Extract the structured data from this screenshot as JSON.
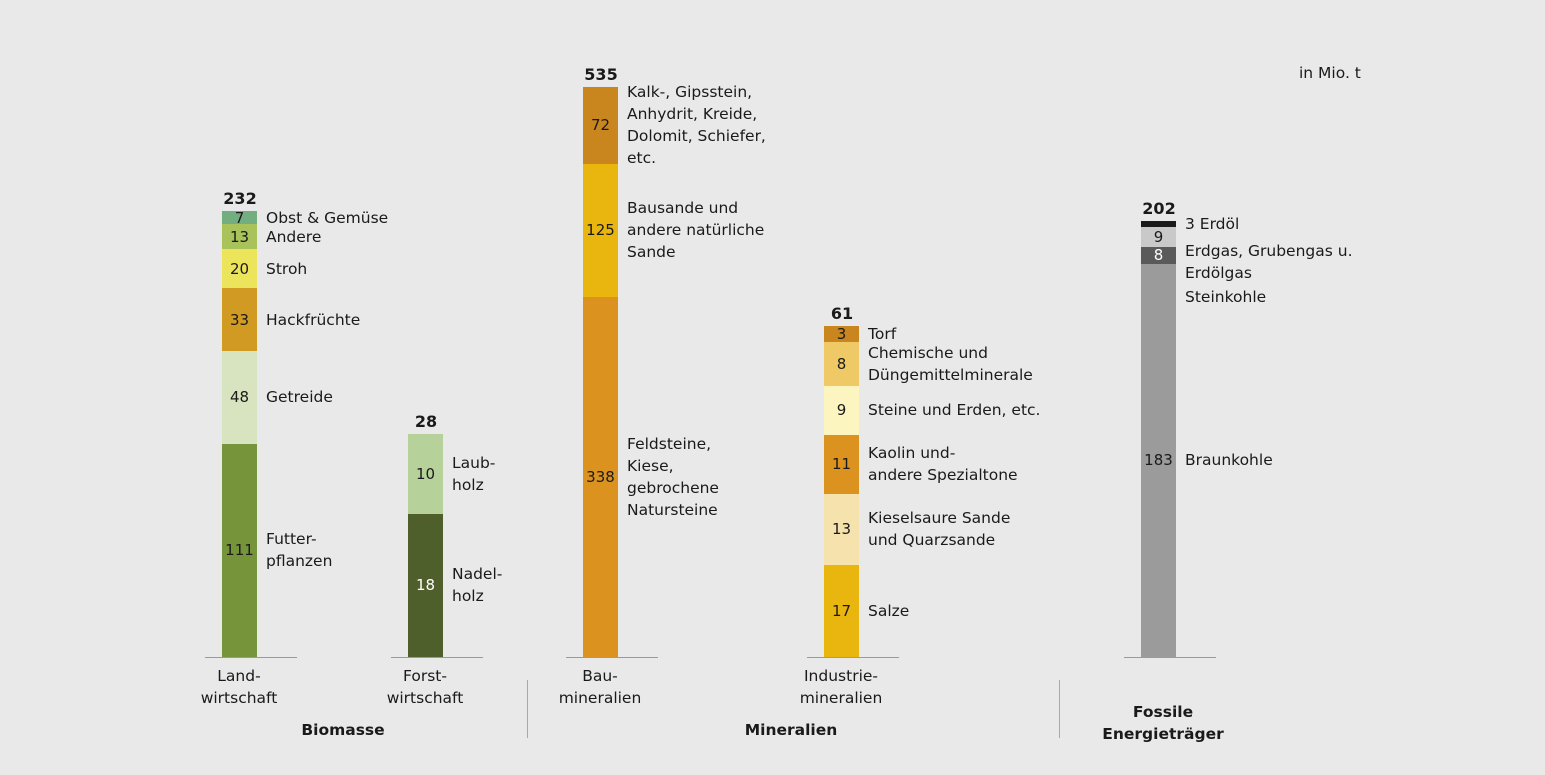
{
  "chart_data": {
    "type": "bar",
    "stacked": true,
    "unit": "in Mio. t",
    "groups": [
      {
        "name": "Biomasse",
        "categories": [
          "Landwirtschaft",
          "Forstwirtschaft"
        ]
      },
      {
        "name": "Mineralien",
        "categories": [
          "Baumineralien",
          "Industriemineralien"
        ]
      },
      {
        "name": "Fossile\nEnergieträger",
        "categories": [
          "Fossile Energieträger"
        ]
      }
    ],
    "bars": [
      {
        "id": "landwirtschaft",
        "label": "Land-\nwirtschaft",
        "total": 232,
        "segments": [
          {
            "name": "Futter-\npflanzen",
            "value": 111,
            "color": "#76953a",
            "text": "#1a1a1a"
          },
          {
            "name": "Getreide",
            "value": 48,
            "color": "#d8e4c0",
            "text": "#1a1a1a"
          },
          {
            "name": "Hackfrüchte",
            "value": 33,
            "color": "#d19a22",
            "text": "#1a1a1a"
          },
          {
            "name": "Stroh",
            "value": 20,
            "color": "#ece45a",
            "text": "#1a1a1a"
          },
          {
            "name": "Andere",
            "value": 13,
            "color": "#a9c25a",
            "text": "#1a1a1a"
          },
          {
            "name": "Obst & Gemüse",
            "value": 7,
            "color": "#72ae80",
            "text": "#1a1a1a"
          }
        ]
      },
      {
        "id": "forstwirtschaft",
        "label": "Forst-\nwirtschaft",
        "total": 28,
        "segments": [
          {
            "name": "Nadel-\nholz",
            "value": 18,
            "color": "#4e5f2b",
            "text": "#ffffff"
          },
          {
            "name": "Laub-\nholz",
            "value": 10,
            "color": "#b6d19a",
            "text": "#1a1a1a"
          }
        ]
      },
      {
        "id": "baumineralien",
        "label": "Bau-\nmineralien",
        "total": 535,
        "segments": [
          {
            "name": "Feldsteine,\nKiese,\ngebrochene\nNatursteine",
            "value": 338,
            "color": "#dc921e",
            "text": "#1a1a1a"
          },
          {
            "name": "Bausande und\nandere natürliche\nSande",
            "value": 125,
            "color": "#e9b610",
            "text": "#1a1a1a"
          },
          {
            "name": "Kalk-, Gipsstein,\nAnhydrit, Kreide,\nDolomit, Schiefer,\netc.",
            "value": 72,
            "color": "#c9861f",
            "text": "#1a1a1a"
          }
        ]
      },
      {
        "id": "industriemineralien",
        "label": "Industrie-\nmineralien",
        "total": 61,
        "segments": [
          {
            "name": "Salze",
            "value": 17,
            "color": "#e9b610",
            "text": "#1a1a1a"
          },
          {
            "name": "Kieselsaure Sande\nund Quarzsande",
            "value": 13,
            "color": "#f5e2ad",
            "text": "#1a1a1a"
          },
          {
            "name": "Kaolin und-\nandere Spezialtone",
            "value": 11,
            "color": "#dc921e",
            "text": "#1a1a1a"
          },
          {
            "name": "Steine und Erden, etc.",
            "value": 9,
            "color": "#fdf5bf",
            "text": "#1a1a1a"
          },
          {
            "name": "Chemische und\nDüngemittelminerale",
            "value": 8,
            "color": "#eec965",
            "text": "#1a1a1a"
          },
          {
            "name": "Torf",
            "value": 3,
            "color": "#c9861f",
            "text": "#1a1a1a"
          }
        ]
      },
      {
        "id": "fossile",
        "label": "",
        "total": 202,
        "segments": [
          {
            "name": "Braunkohle",
            "value": 183,
            "color": "#9b9b9b",
            "text": "#1a1a1a"
          },
          {
            "name": "Erdgas, Grubengas u.\nErdölgas",
            "value": 8,
            "color": "#5a5a5a",
            "text": "#ffffff"
          },
          {
            "name": "Steinkohle",
            "value": 9,
            "color": "#c9c9c9",
            "text": "#1a1a1a"
          },
          {
            "name": "Erdöl",
            "value": 3,
            "color": "#1a1a1a",
            "text": "#1a1a1a"
          }
        ]
      }
    ]
  }
}
